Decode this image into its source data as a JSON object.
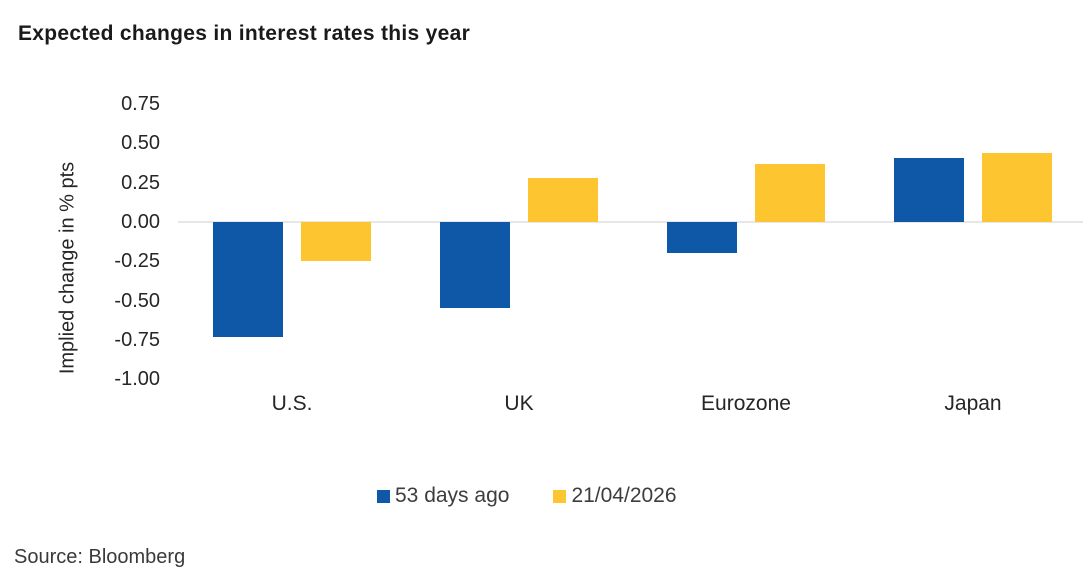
{
  "title": "Expected changes in interest rates this year",
  "source": "Source: Bloomberg",
  "colors": {
    "background": "#FFFFFF",
    "title_text": "#1A1A1A",
    "axis_text": "#262626",
    "source_text": "#3A3A3A",
    "zero_line": "#E7E7E7",
    "series_blue": "#0F58A8",
    "series_yellow": "#FDC52F"
  },
  "chart_data": {
    "type": "bar",
    "title": "Expected changes in interest rates this year",
    "categories": [
      "U.S.",
      "UK",
      "Eurozone",
      "Japan"
    ],
    "series": [
      {
        "name": "53 days ago",
        "color": "#0F58A8",
        "values": [
          -0.73,
          -0.55,
          -0.2,
          0.41
        ]
      },
      {
        "name": "21/04/2026",
        "color": "#FDC52F",
        "values": [
          -0.25,
          0.28,
          0.37,
          0.44
        ]
      }
    ],
    "xlabel": "",
    "ylabel": "Implied change in % pts",
    "ylim": [
      -1.0,
      0.75
    ],
    "ytick_step": 0.25,
    "yticks": [
      "0.75",
      "0.50",
      "0.25",
      "0.00",
      "-0.25",
      "-0.50",
      "-0.75",
      "-1.00"
    ],
    "ytick_values": [
      0.75,
      0.5,
      0.25,
      0.0,
      -0.25,
      -0.5,
      -0.75,
      -1.0
    ],
    "grid": false,
    "legend_position": "bottom"
  }
}
